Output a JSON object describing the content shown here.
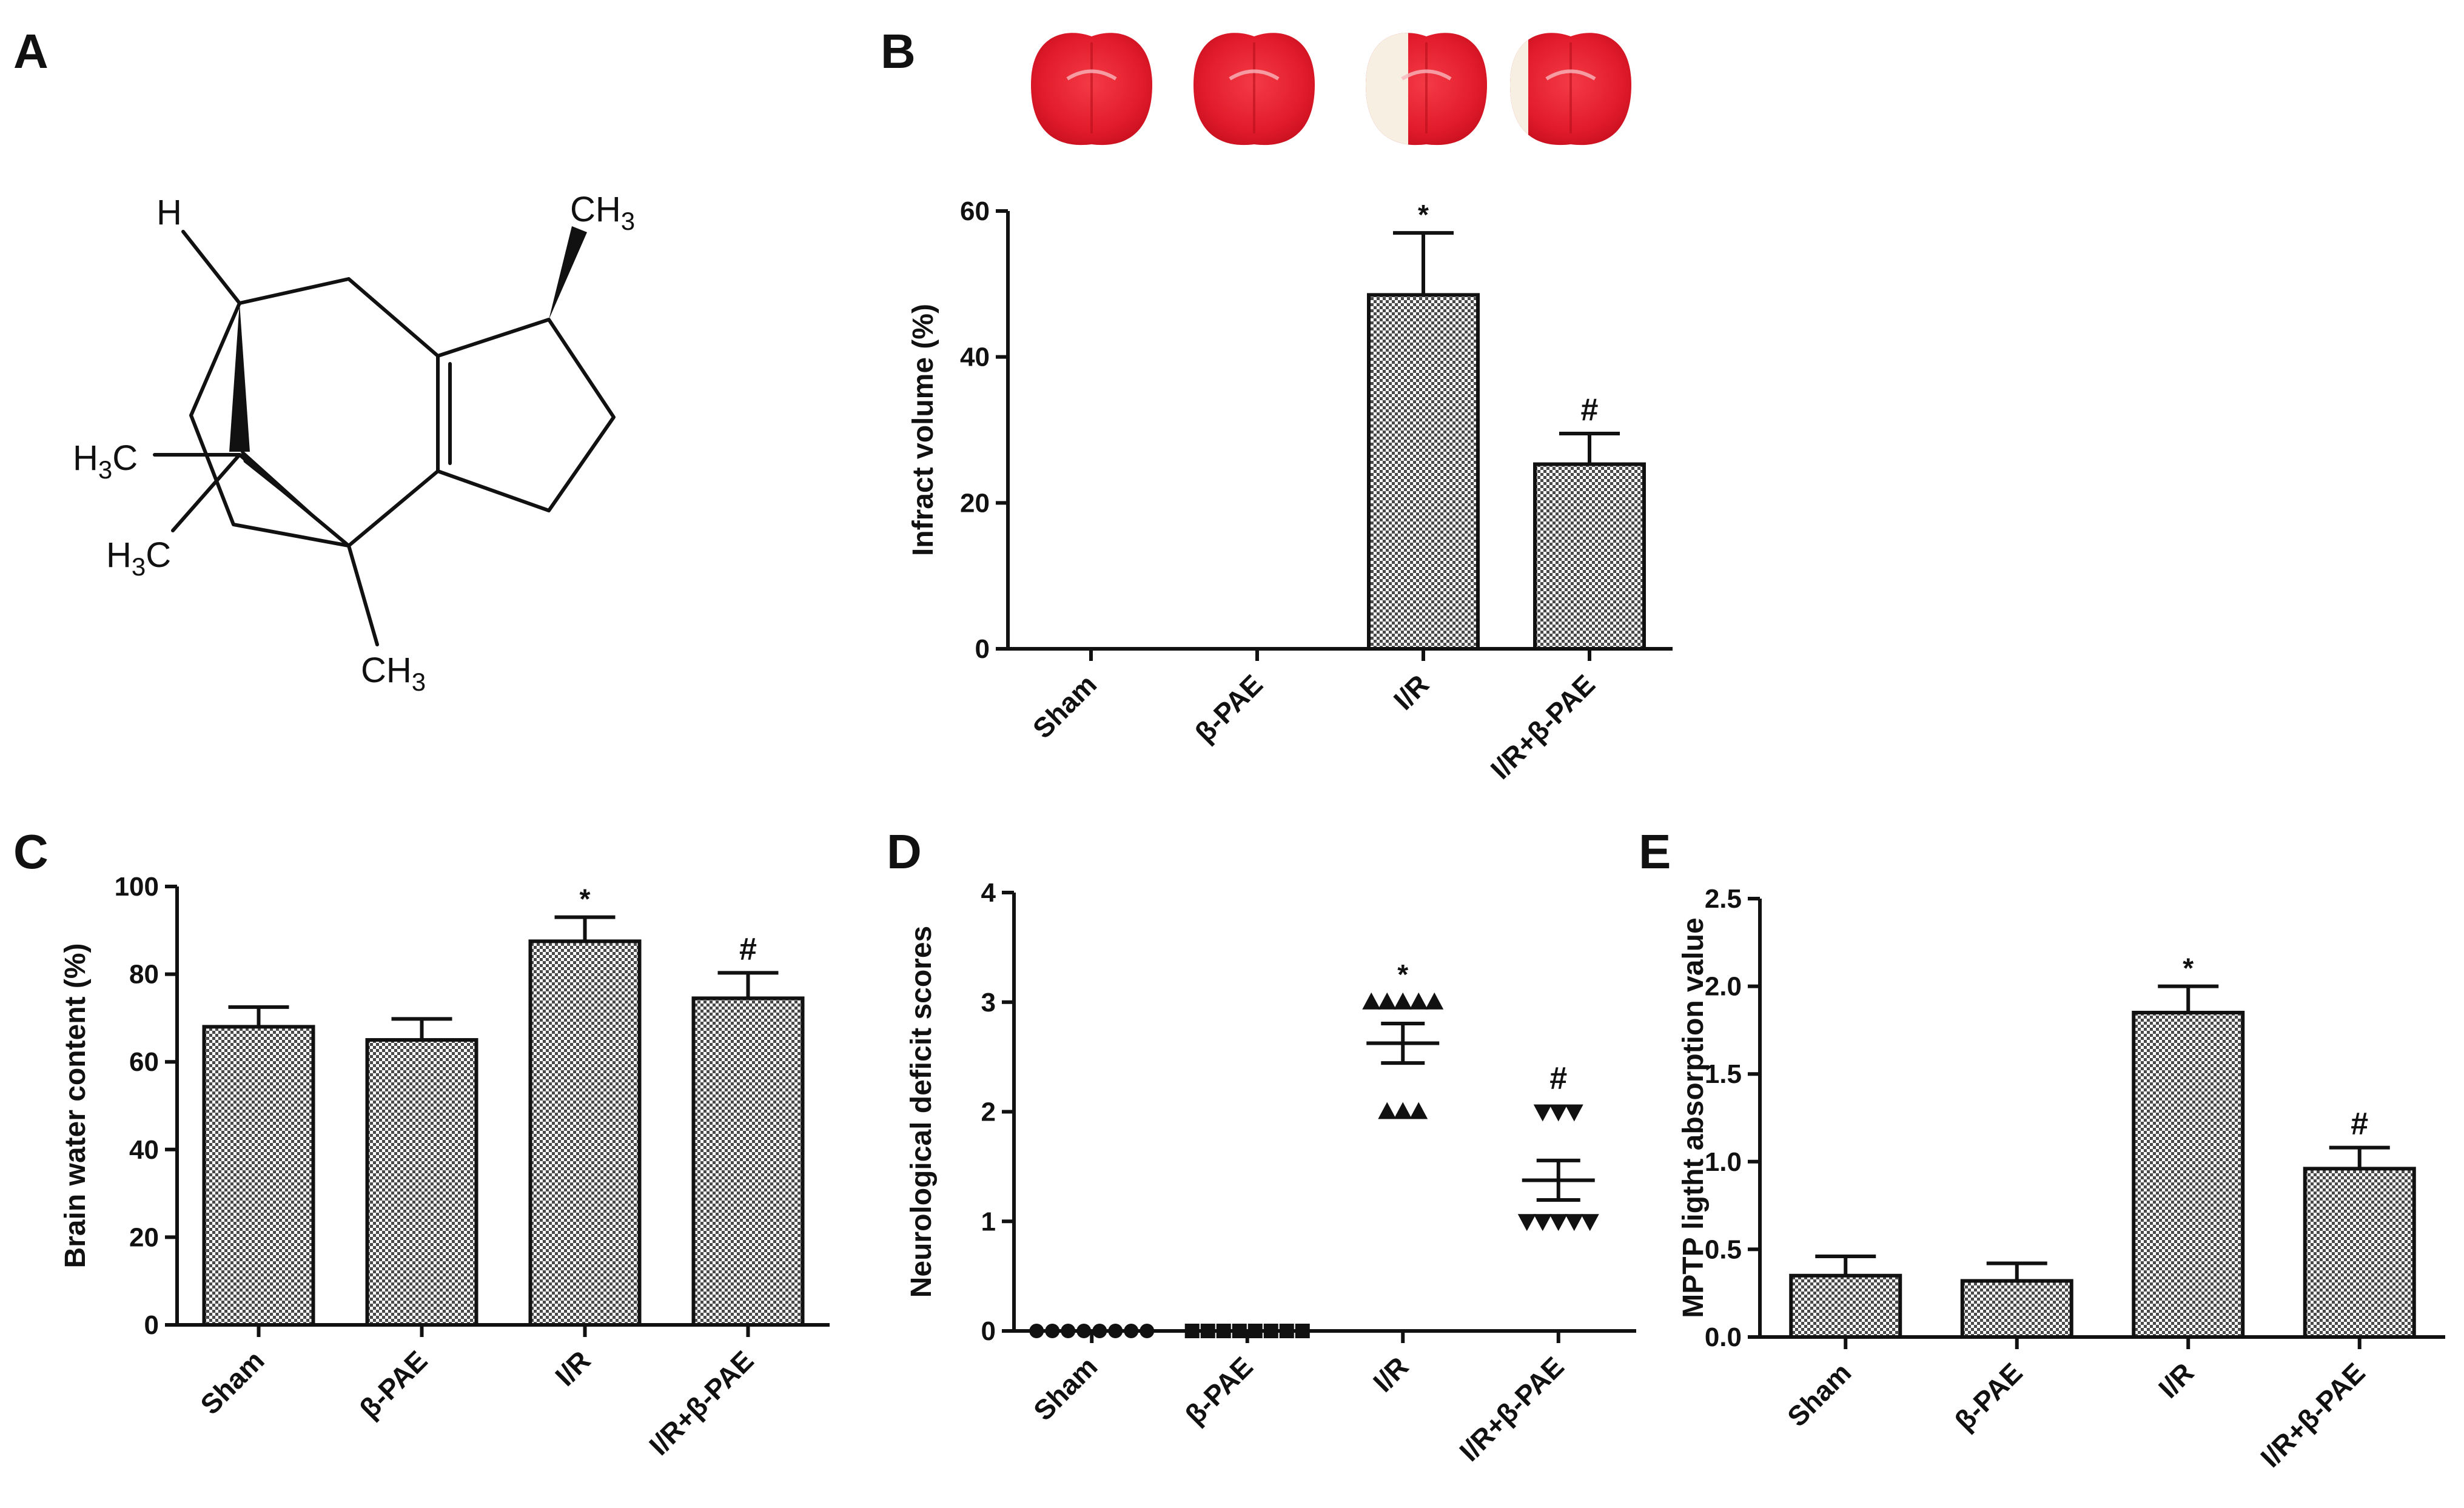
{
  "panels": {
    "A": "A",
    "B": "B",
    "C": "C",
    "D": "D",
    "E": "E"
  },
  "molecule": {
    "atoms": [
      "H",
      "CH3",
      "H3C",
      "H3C",
      "CH3"
    ],
    "colors": {
      "bond": "#111111"
    }
  },
  "brain_slices": {
    "count": 4,
    "colors": {
      "tissue": "#e8202e",
      "infarct": "#f6efe2"
    },
    "infarct_fraction": [
      0,
      0,
      0.35,
      0.15
    ]
  },
  "colors": {
    "bar_fill": "#9a9a9a",
    "bar_stroke": "#111111",
    "axis": "#111111"
  },
  "chart_data": [
    {
      "panel": "B",
      "type": "bar",
      "categories": [
        "Sham",
        "β-PAE",
        "I/R",
        "I/R+β-PAE"
      ],
      "values": [
        0,
        0,
        48.5,
        25.3
      ],
      "errors": [
        0,
        0,
        8.5,
        4.2
      ],
      "annotations": [
        "",
        "",
        "*",
        "#"
      ],
      "ylabel": "Infract  volume (%)",
      "ylim": [
        0,
        60
      ],
      "yticks": [
        0,
        20,
        40,
        60
      ],
      "ytick_labels": [
        "0",
        "20",
        "40",
        "60"
      ]
    },
    {
      "panel": "C",
      "type": "bar",
      "categories": [
        "Sham",
        "β-PAE",
        "I/R",
        "I/R+β-PAE"
      ],
      "values": [
        68,
        65,
        87.5,
        74.5
      ],
      "errors": [
        4.5,
        4.8,
        5.5,
        5.8
      ],
      "annotations": [
        "",
        "",
        "*",
        "#"
      ],
      "ylabel": "Brain water content (%)",
      "ylim": [
        0,
        100
      ],
      "yticks": [
        0,
        20,
        40,
        60,
        80,
        100
      ],
      "ytick_labels": [
        "0",
        "20",
        "40",
        "60",
        "80",
        "100"
      ]
    },
    {
      "panel": "D",
      "type": "scatter",
      "categories": [
        "Sham",
        "β-PAE",
        "I/R",
        "I/R+β-PAE"
      ],
      "series": [
        {
          "marker": "circle",
          "values": [
            0,
            0,
            0,
            0,
            0,
            0,
            0,
            0
          ],
          "mean": 0,
          "sem": 0
        },
        {
          "marker": "square",
          "values": [
            0,
            0,
            0,
            0,
            0,
            0,
            0,
            0
          ],
          "mean": 0,
          "sem": 0
        },
        {
          "marker": "triangle-up",
          "values": [
            3,
            3,
            3,
            3,
            3,
            2,
            2,
            2
          ],
          "mean": 2.625,
          "sem": 0.18
        },
        {
          "marker": "triangle-down",
          "values": [
            2,
            2,
            2,
            1,
            1,
            1,
            1,
            1
          ],
          "mean": 1.375,
          "sem": 0.18
        }
      ],
      "annotations": [
        "",
        "",
        "*",
        "#"
      ],
      "ylabel": "Neurological deficit scores",
      "ylim": [
        0,
        4
      ],
      "yticks": [
        0,
        1,
        2,
        3,
        4
      ],
      "ytick_labels": [
        "0",
        "1",
        "2",
        "3",
        "4"
      ]
    },
    {
      "panel": "E",
      "type": "bar",
      "categories": [
        "Sham",
        "β-PAE",
        "I/R",
        "I/R+β-PAE"
      ],
      "values": [
        0.35,
        0.32,
        1.85,
        0.96
      ],
      "errors": [
        0.11,
        0.1,
        0.15,
        0.12
      ],
      "annotations": [
        "",
        "",
        "*",
        "#"
      ],
      "ylabel": "MPTP ligtht absorption value",
      "ylim": [
        0,
        2.5
      ],
      "yticks": [
        0,
        0.5,
        1.0,
        1.5,
        2.0,
        2.5
      ],
      "ytick_labels": [
        "0.0",
        "0.5",
        "1.0",
        "1.5",
        "2.0",
        "2.5"
      ]
    }
  ]
}
